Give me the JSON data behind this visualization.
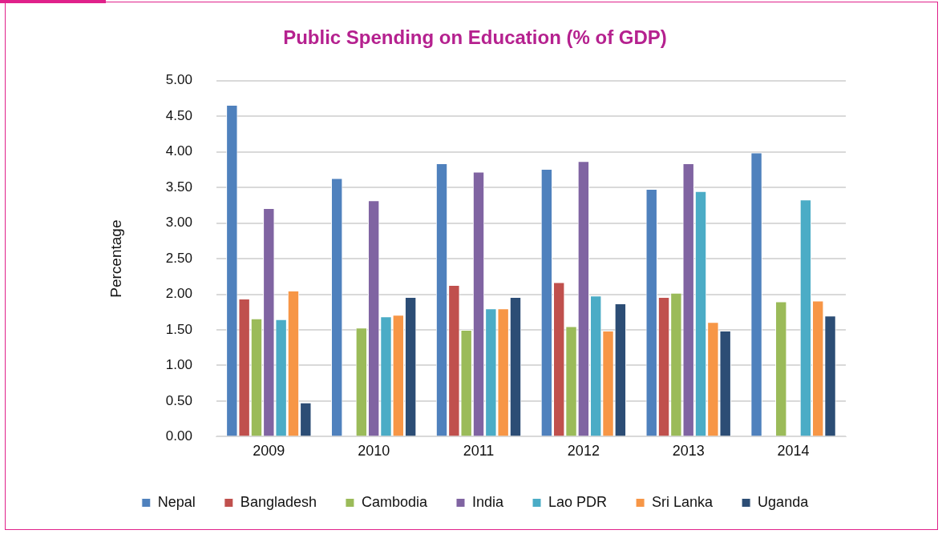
{
  "chart_data": {
    "type": "bar",
    "title": "Public Spending on Education (% of GDP)",
    "ylabel": "Percentage",
    "categories": [
      "2009",
      "2010",
      "2011",
      "2012",
      "2013",
      "2014"
    ],
    "series": [
      {
        "name": "Nepal",
        "color": "#4f81bd",
        "values": [
          4.66,
          3.63,
          3.84,
          3.76,
          3.48,
          3.99
        ]
      },
      {
        "name": "Bangladesh",
        "color": "#c0504d",
        "values": [
          1.94,
          null,
          2.13,
          2.17,
          1.96,
          null
        ]
      },
      {
        "name": "Cambodia",
        "color": "#9bbb59",
        "values": [
          1.66,
          1.53,
          1.5,
          1.55,
          2.02,
          1.9
        ]
      },
      {
        "name": "India",
        "color": "#8064a2",
        "values": [
          3.21,
          3.32,
          3.72,
          3.87,
          3.84,
          null
        ]
      },
      {
        "name": "Lao PDR",
        "color": "#4bacc6",
        "values": [
          1.65,
          1.69,
          1.8,
          1.98,
          3.45,
          3.33
        ]
      },
      {
        "name": "Sri Lanka",
        "color": "#f79646",
        "values": [
          2.05,
          1.71,
          1.8,
          1.49,
          1.61,
          1.91
        ]
      },
      {
        "name": "Uganda",
        "color": "#2c4d75",
        "values": [
          0.48,
          1.96,
          1.96,
          1.87,
          1.49,
          1.7
        ]
      }
    ],
    "ylim": [
      0,
      5
    ],
    "yticks": [
      {
        "value": 0,
        "label": "0.00"
      },
      {
        "value": 0.5,
        "label": "0.50"
      },
      {
        "value": 1,
        "label": "1.00"
      },
      {
        "value": 1.5,
        "label": "1.50"
      },
      {
        "value": 2,
        "label": "2.00"
      },
      {
        "value": 2.5,
        "label": "2.50"
      },
      {
        "value": 3,
        "label": "3.00"
      },
      {
        "value": 3.5,
        "label": "3.50"
      },
      {
        "value": 4,
        "label": "4.00"
      },
      {
        "value": 4.5,
        "label": "4.50"
      },
      {
        "value": 5,
        "label": "5.00"
      }
    ],
    "grid": "y",
    "legend": "bottom"
  }
}
